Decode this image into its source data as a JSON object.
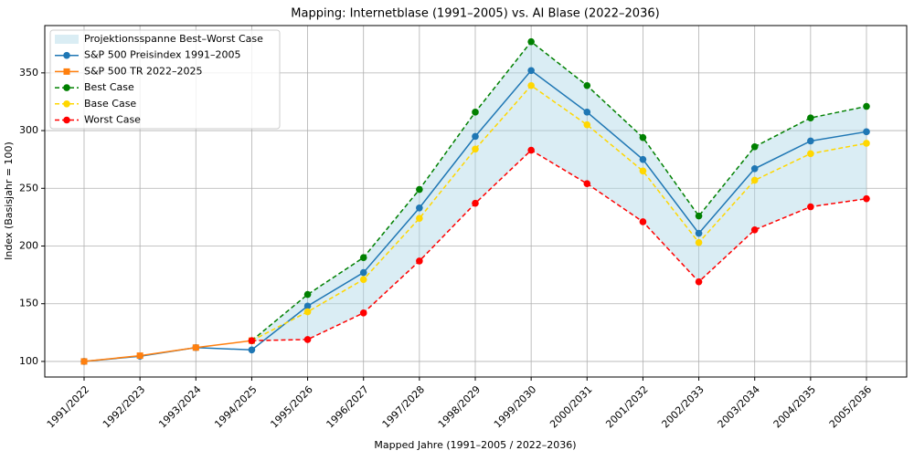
{
  "chart_data": {
    "type": "line",
    "title": "Mapping: Internetblase (1991–2005) vs. AI Blase (2022–2036)",
    "x_label": "Mapped Jahre (1991–2005 / 2022–2036)",
    "y_label": "Index (Basisjahr = 100)",
    "categories": [
      "1991/2022",
      "1992/2023",
      "1993/2024",
      "1994/2025",
      "1995/2026",
      "1996/2027",
      "1997/2028",
      "1998/2029",
      "1999/2030",
      "2000/2031",
      "2001/2032",
      "2002/2033",
      "2003/2034",
      "2004/2035",
      "2005/2036"
    ],
    "band": {
      "name": "Projektionsspanne Best–Worst Case",
      "color": "#add8e6",
      "upper": "Best Case",
      "lower": "Worst Case"
    },
    "series": [
      {
        "name": "S&P 500 Preisindex 1991–2005",
        "color": "#1f77b4",
        "dash": false,
        "marker": "circle",
        "values": [
          100,
          104.5,
          112,
          110,
          148,
          177,
          233,
          295,
          352,
          316,
          275,
          211,
          267,
          291,
          299
        ]
      },
      {
        "name": "S&P 500 TR 2022–2025",
        "color": "#ff7f0e",
        "dash": false,
        "marker": "square",
        "values": [
          100,
          105,
          112,
          118,
          null,
          null,
          null,
          null,
          null,
          null,
          null,
          null,
          null,
          null,
          null
        ]
      },
      {
        "name": "Best Case",
        "color": "#008000",
        "dash": true,
        "marker": "circle",
        "values": [
          null,
          null,
          null,
          118,
          158,
          190,
          249,
          316,
          377,
          339,
          294,
          226,
          286,
          311,
          321
        ]
      },
      {
        "name": "Base Case",
        "color": "#ffd700",
        "dash": true,
        "marker": "circle",
        "values": [
          null,
          null,
          null,
          118,
          143,
          171,
          224,
          284,
          339,
          305,
          265,
          203,
          257,
          280,
          289
        ]
      },
      {
        "name": "Worst Case",
        "color": "#ff0000",
        "dash": true,
        "marker": "circle",
        "values": [
          null,
          null,
          null,
          118,
          119,
          142,
          187,
          237,
          283,
          254,
          221,
          169,
          214,
          234,
          241
        ]
      }
    ],
    "ylim": [
      86.5,
      391
    ],
    "yticks": [
      100,
      150,
      200,
      250,
      300,
      350
    ],
    "grid": true,
    "legend": "upper left"
  }
}
